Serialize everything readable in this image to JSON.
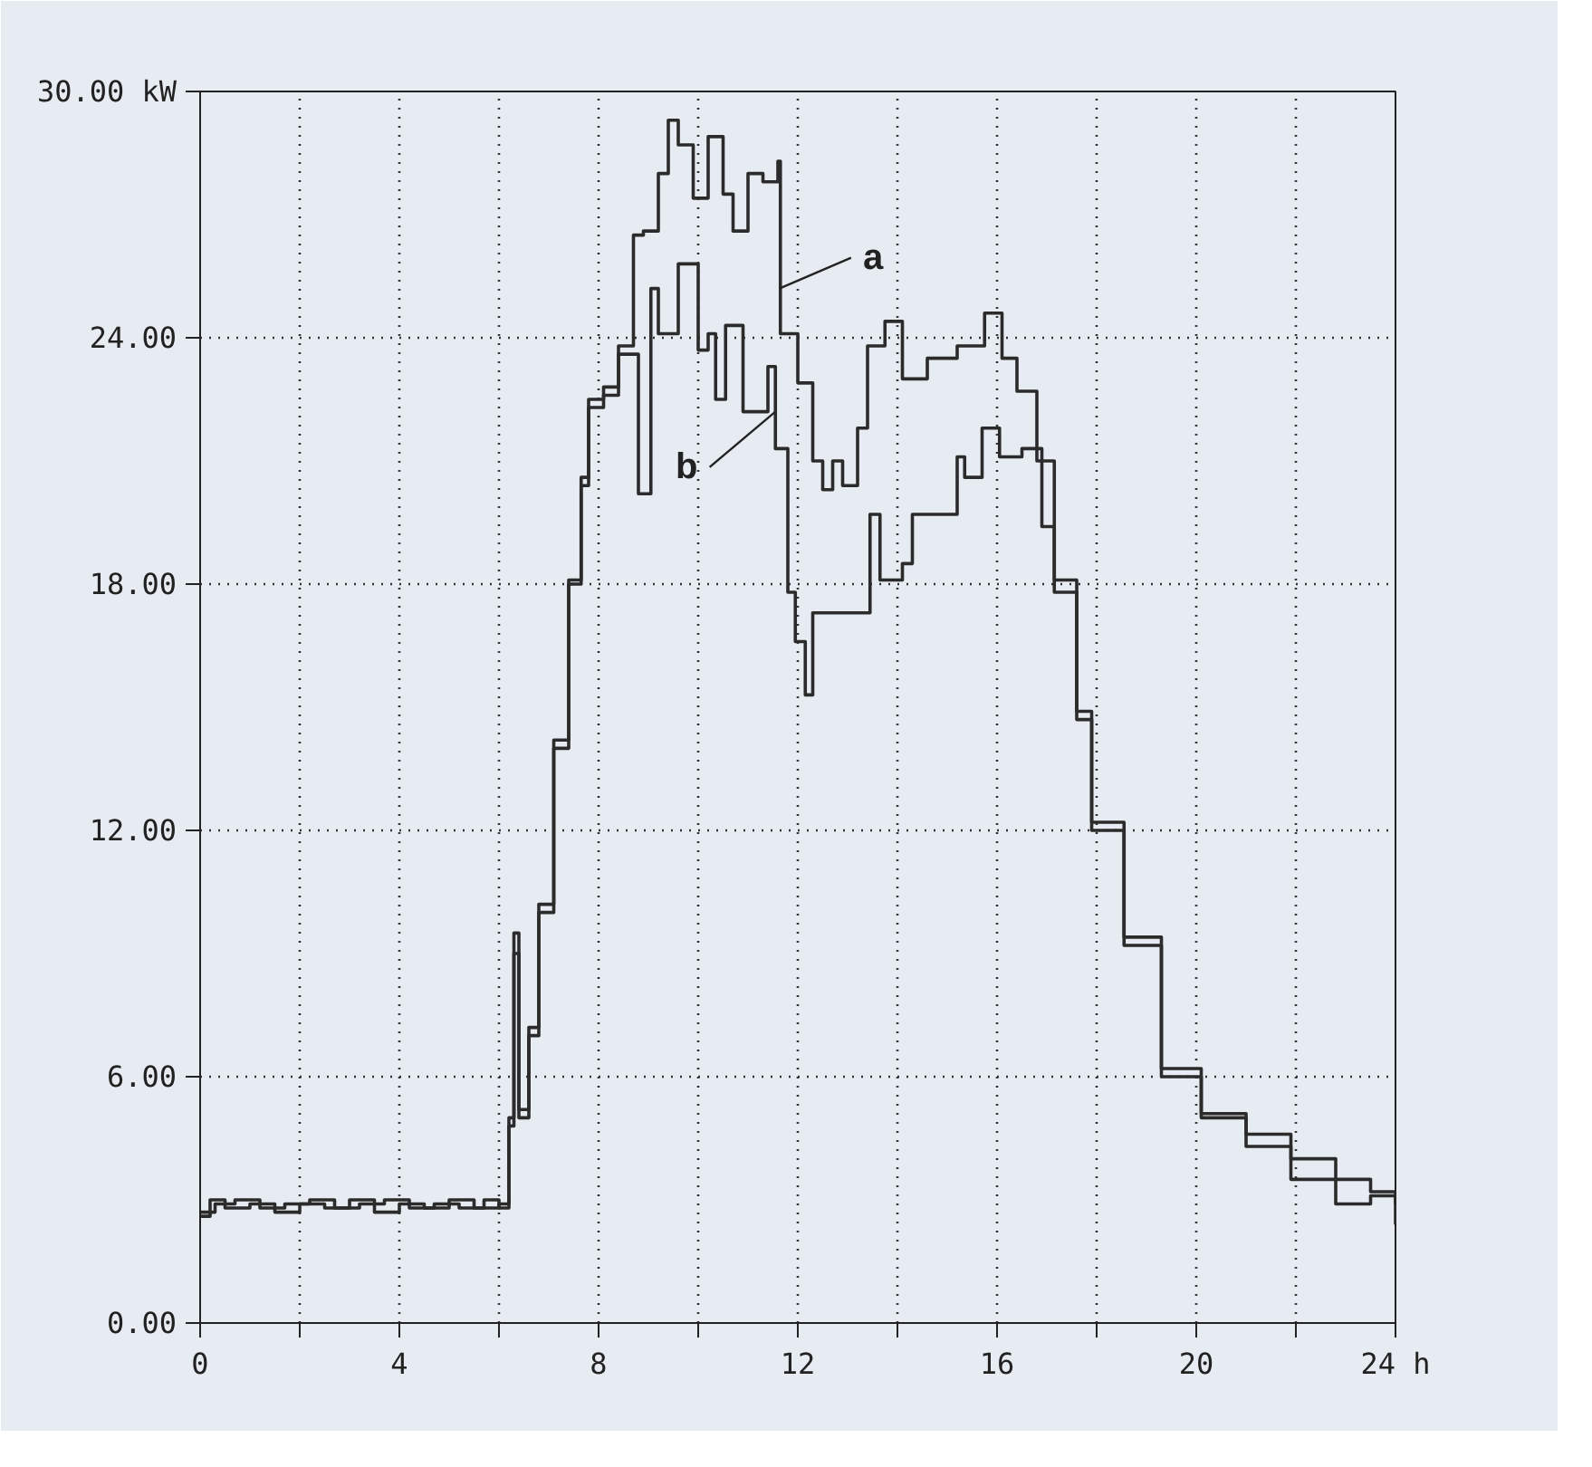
{
  "chart_data": {
    "type": "step",
    "xlim": [
      0,
      24
    ],
    "ylim": [
      0,
      30
    ],
    "xticks": [
      0,
      {
        "value": 2,
        "label": null
      },
      4,
      {
        "value": 6,
        "label": null
      },
      8,
      {
        "value": 10,
        "label": null
      },
      12,
      {
        "value": 14,
        "label": null
      },
      16,
      {
        "value": 18,
        "label": null
      },
      20,
      {
        "value": 22,
        "label": null
      },
      {
        "value": 24,
        "label": "24 h"
      }
    ],
    "yticks": [
      {
        "value": 0,
        "label": "0.00"
      },
      {
        "value": 6,
        "label": "6.00"
      },
      {
        "value": 12,
        "label": "12.00"
      },
      {
        "value": 18,
        "label": "18.00"
      },
      {
        "value": 24,
        "label": "24.00"
      },
      {
        "value": 30,
        "label": "30.00 kW"
      }
    ],
    "grid": true,
    "line_style": "solid",
    "marker": "none",
    "series": [
      {
        "color": "#2b2b2b",
        "x": [
          0,
          0.2,
          0.5,
          1,
          1.5,
          2,
          2.5,
          3,
          3.5,
          4,
          4.5,
          5,
          5.5,
          6.0,
          6.2,
          6.3,
          6.4,
          6.6,
          6.8,
          7.1,
          7.4,
          7.65,
          7.8,
          8.1,
          8.4,
          8.7,
          8.9,
          9.2,
          9.4,
          9.6,
          9.9,
          10.2,
          10.5,
          10.7,
          11.0,
          11.3,
          11.6,
          11.65,
          12.0,
          12.3,
          12.5,
          12.7,
          12.9,
          13.2,
          13.4,
          13.75,
          14.1,
          14.6,
          15.2,
          15.75,
          16.1,
          16.4,
          16.8,
          17.15,
          17.6,
          17.9,
          18.55,
          19.3,
          20.1,
          21.0,
          21.9,
          22.8,
          23.5,
          24
        ],
        "values": [
          2.6,
          3.0,
          2.8,
          2.9,
          2.7,
          2.9,
          2.8,
          3.0,
          2.7,
          2.9,
          2.8,
          3.0,
          2.8,
          2.9,
          5.0,
          9.5,
          5.0,
          7.0,
          10.0,
          14.0,
          18.1,
          20.4,
          22.5,
          22.8,
          23.8,
          26.5,
          26.6,
          28.0,
          29.3,
          28.7,
          27.4,
          28.9,
          27.5,
          26.6,
          28.0,
          27.8,
          28.3,
          24.1,
          22.9,
          21.0,
          20.3,
          21.0,
          20.4,
          21.8,
          23.8,
          24.4,
          23.0,
          23.5,
          23.8,
          24.6,
          23.5,
          22.7,
          21.0,
          18.1,
          14.9,
          12.2,
          9.4,
          6.2,
          5.0,
          4.3,
          3.5,
          2.9,
          3.1,
          2.4
        ]
      },
      {
        "color": "#2b2b2b",
        "x": [
          0,
          0.3,
          0.7,
          1.2,
          1.7,
          2.2,
          2.7,
          3.2,
          3.7,
          4.2,
          4.7,
          5.2,
          5.7,
          6.0,
          6.2,
          6.3,
          6.4,
          6.6,
          6.8,
          7.1,
          7.4,
          7.65,
          7.8,
          8.1,
          8.4,
          8.8,
          9.05,
          9.2,
          9.6,
          10.0,
          10.2,
          10.35,
          10.55,
          10.9,
          11.4,
          11.55,
          11.8,
          11.95,
          12.15,
          12.3,
          12.8,
          13.45,
          13.65,
          14.1,
          14.3,
          15.2,
          15.35,
          15.7,
          16.05,
          16.5,
          16.9,
          17.15,
          17.6,
          17.9,
          18.55,
          19.3,
          20.1,
          21.0,
          21.9,
          22.8,
          23.5,
          24
        ],
        "values": [
          2.7,
          2.9,
          3.0,
          2.8,
          2.9,
          3.0,
          2.8,
          2.9,
          3.0,
          2.8,
          2.9,
          2.8,
          3.0,
          2.8,
          4.8,
          9.0,
          5.2,
          7.2,
          10.2,
          14.2,
          18.0,
          20.6,
          22.3,
          22.6,
          23.6,
          20.2,
          25.2,
          24.1,
          25.8,
          23.7,
          24.1,
          22.5,
          24.3,
          22.2,
          23.3,
          21.3,
          17.8,
          16.6,
          15.3,
          17.3,
          17.3,
          19.7,
          18.1,
          18.5,
          19.7,
          21.1,
          20.6,
          21.8,
          21.1,
          21.3,
          19.4,
          17.8,
          14.7,
          12.0,
          9.2,
          6.0,
          5.1,
          4.6,
          4.0,
          3.5,
          3.2,
          2.9
        ]
      }
    ],
    "annotations": [
      {
        "text": "a",
        "x": 11.63,
        "y": 25.2
      },
      {
        "text": "b",
        "x": 11.55,
        "y": 22.2
      }
    ]
  }
}
